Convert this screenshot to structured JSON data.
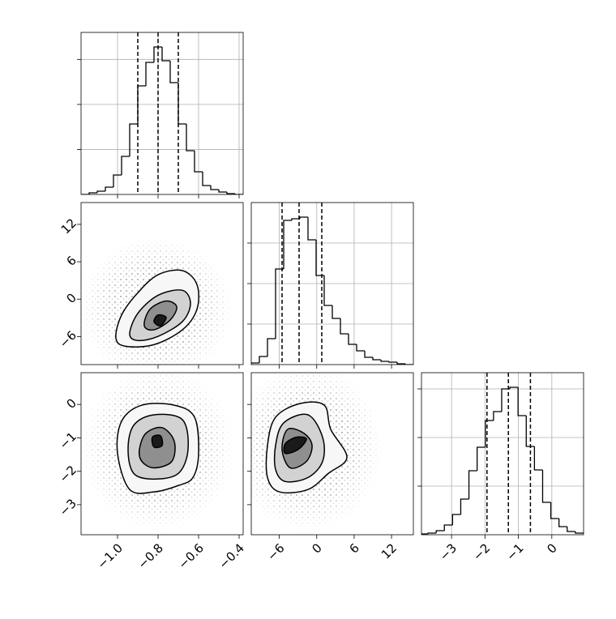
{
  "chart_data": {
    "type": "corner",
    "grid": true,
    "color": "#000000",
    "params": [
      {
        "lim": [
          -1.18,
          -0.38
        ],
        "ticks": [
          {
            "value": -1.0,
            "label": "−1.0"
          },
          {
            "value": -0.8,
            "label": "−0.8"
          },
          {
            "value": -0.6,
            "label": "−0.6"
          },
          {
            "value": -0.4,
            "label": "−0.4"
          }
        ]
      },
      {
        "lim": [
          -10.5,
          15.5
        ],
        "ticks": [
          {
            "value": -6,
            "label": "−6"
          },
          0,
          6,
          12
        ]
      },
      {
        "lim": [
          -3.9,
          0.95
        ],
        "ticks": [
          {
            "value": -3,
            "label": "−3"
          },
          {
            "value": -2,
            "label": "−2"
          },
          {
            "value": -1,
            "label": "−1"
          },
          0
        ]
      }
    ],
    "histograms": [
      {
        "bins": [
          -1.18,
          -1.14,
          -1.1,
          -1.06,
          -1.02,
          -0.98,
          -0.94,
          -0.9,
          -0.86,
          -0.82,
          -0.78,
          -0.74,
          -0.7,
          -0.66,
          -0.62,
          -0.58,
          -0.54,
          -0.5,
          -0.46,
          -0.42,
          -0.38
        ],
        "counts": [
          0,
          18,
          36,
          81,
          216,
          423,
          783,
          1206,
          1467,
          1638,
          1485,
          1242,
          783,
          486,
          252,
          99,
          54,
          27,
          9,
          0
        ],
        "ylim": [
          0,
          1800
        ],
        "yticks": [
          500,
          1000,
          1500
        ],
        "quantiles": [
          -0.9,
          -0.8,
          -0.7
        ]
      },
      {
        "bins": [
          -10.5,
          -9.2,
          -7.9,
          -6.6,
          -5.3,
          -4,
          -2.7,
          -1.4,
          -0.1,
          1.2,
          2.5,
          3.8,
          5.1,
          6.4,
          7.7,
          9,
          10.3,
          11.6,
          12.9,
          14.2,
          15.5
        ],
        "counts": [
          20,
          100,
          320,
          1180,
          1780,
          1800,
          1820,
          1540,
          1100,
          730,
          570,
          380,
          250,
          170,
          90,
          60,
          40,
          30,
          10,
          0
        ],
        "ylim": [
          0,
          2000
        ],
        "yticks": [
          500,
          1000,
          1500
        ],
        "quantiles": [
          -5.56,
          -2.83,
          0.81
        ]
      },
      {
        "bins": [
          -3.95,
          -3.705,
          -3.46,
          -3.215,
          -2.97,
          -2.725,
          -2.48,
          -2.235,
          -1.99,
          -1.745,
          -1.5,
          -1.255,
          -1.01,
          -0.765,
          -0.52,
          -0.275,
          -0.03,
          0.215,
          0.46,
          0.705,
          0.95
        ],
        "counts": [
          10,
          20,
          50,
          120,
          250,
          440,
          790,
          1080,
          1410,
          1520,
          1800,
          1820,
          1470,
          1090,
          800,
          400,
          200,
          100,
          40,
          20
        ],
        "ylim": [
          0,
          2000
        ],
        "yticks": [
          600,
          1200,
          1800
        ],
        "quantiles": [
          -1.94,
          -1.3,
          -0.64
        ]
      }
    ],
    "pairs": [
      {
        "levels": [
          {
            "x": [
              -1.008,
              -0.98,
              -0.9,
              -0.8,
              -0.68,
              -0.608,
              -0.608,
              -0.68,
              -0.82,
              -0.96
            ],
            "y": [
              -6.24,
              -2.54,
              1.02,
              3.92,
              4.58,
              2.34,
              -1.62,
              -4.92,
              -7.3,
              -7.56
            ]
          },
          {
            "x": [
              -0.94,
              -0.9,
              -0.8,
              -0.68,
              -0.64,
              -0.68,
              -0.8,
              -0.9
            ],
            "y": [
              -5.58,
              -2.28,
              0.62,
              1.42,
              -0.7,
              -3.6,
              -5.98,
              -6.64
            ]
          },
          {
            "x": [
              -0.868,
              -0.84,
              -0.76,
              -0.708,
              -0.74,
              -0.82
            ],
            "y": [
              -4.26,
              -1.62,
              -0.3,
              -1.22,
              -3.34,
              -4.92
            ]
          },
          {
            "x": [
              -0.82,
              -0.8,
              -0.76,
              -0.788
            ],
            "y": [
              -3.6,
              -2.54,
              -2.94,
              -4.26
            ]
          }
        ]
      },
      {
        "levels": [
          {
            "x": [
              -1.0,
              -0.98,
              -0.88,
              -0.72,
              -0.62,
              -0.6,
              -0.628,
              -0.7,
              -0.82,
              -0.94
            ],
            "y": [
              -1.465,
              -0.503,
              -0.022,
              -0.022,
              -0.383,
              -1.465,
              -2.187,
              -2.427,
              -2.619,
              -2.547
            ]
          },
          {
            "x": [
              -0.948,
              -0.92,
              -0.82,
              -0.68,
              -0.652,
              -0.7,
              -0.82,
              -0.92
            ],
            "y": [
              -1.345,
              -0.623,
              -0.311,
              -0.455,
              -1.345,
              -2.066,
              -2.235,
              -2.066
            ]
          },
          {
            "x": [
              -0.892,
              -0.86,
              -0.78,
              -0.72,
              -0.732,
              -0.82,
              -0.88
            ],
            "y": [
              -1.345,
              -0.864,
              -0.695,
              -1.104,
              -1.705,
              -1.898,
              -1.705
            ]
          },
          {
            "x": [
              -0.828,
              -0.788,
              -0.78,
              -0.82
            ],
            "y": [
              -0.984,
              -0.936,
              -1.225,
              -1.273
            ]
          }
        ]
      },
      {
        "levels": [
          {
            "x": [
              -7.9,
              -6.6,
              -2.7,
              1.2,
              2.24,
              4.84,
              1.85,
              -1.4,
              -5.95,
              -7.9
            ],
            "y": [
              -1.225,
              -0.383,
              0.026,
              -0.022,
              -0.743,
              -1.585,
              -2.066,
              -2.547,
              -2.619,
              -2.187
            ]
          },
          {
            "x": [
              -6.6,
              -5.3,
              -1.4,
              0.94,
              0.94,
              -1.4,
              -5.04,
              -6.6
            ],
            "y": [
              -1.225,
              -0.552,
              -0.311,
              -0.984,
              -1.705,
              -2.187,
              -2.307,
              -1.946
            ]
          },
          {
            "x": [
              -5.56,
              -4.65,
              -2.05,
              -0.75,
              -1.66,
              -4.26
            ],
            "y": [
              -1.345,
              -0.743,
              -0.864,
              -1.225,
              -1.705,
              -1.898
            ]
          },
          {
            "x": [
              -5.04,
              -3.35,
              -1.66,
              -2.96,
              -5.04
            ],
            "y": [
              -1.176,
              -0.984,
              -1.032,
              -1.345,
              -1.465
            ]
          }
        ]
      }
    ]
  }
}
